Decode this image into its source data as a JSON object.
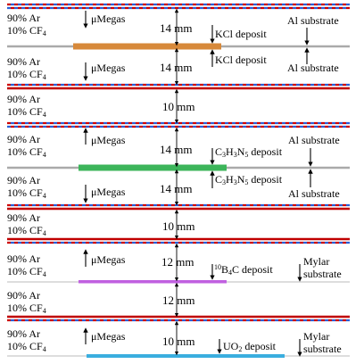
{
  "colors": {
    "mesh_red": "#cc0000",
    "mesh_blue": "#2a5fd6",
    "cathode_red": "#c00000",
    "substrate_gray": "#aaaaaa",
    "kcl": "#d7893a",
    "c3h3n5": "#3cb55a",
    "b4c": "#c060e0",
    "uo2": "#3aaedf"
  },
  "gaps": [
    {
      "gas_line1": "90% Ar",
      "gas_line2_prefix": "10% CF",
      "gas_line2_sub": "4",
      "megas_label": "μMegas",
      "megas_arrow": "down",
      "distance": "14 mm",
      "deposit_prefix": "KCl deposit",
      "deposit_arrow": "down",
      "substrate_label": "Al substrate",
      "substrate_arrow": "down"
    },
    {
      "gas_line1": "90% Ar",
      "gas_line2_prefix": "10% CF",
      "gas_line2_sub": "4",
      "megas_label": "μMegas",
      "megas_arrow": "down",
      "distance": "14 mm",
      "deposit_prefix": "KCl deposit",
      "deposit_arrow": "up",
      "substrate_label": "Al substrate",
      "substrate_arrow": "up"
    },
    {
      "gas_line1": "90% Ar",
      "gas_line2_prefix": "10% CF",
      "gas_line2_sub": "4",
      "distance": "10 mm"
    },
    {
      "gas_line1": "90% Ar",
      "gas_line2_prefix": "10% CF",
      "gas_line2_sub": "4",
      "megas_label": "μMegas",
      "megas_arrow": "up",
      "distance": "14 mm",
      "deposit_html_parts": [
        "C",
        "3",
        "H",
        "3",
        "N",
        "5",
        " deposit"
      ],
      "deposit_arrow": "down",
      "substrate_label": "Al substrate",
      "substrate_arrow": "down"
    },
    {
      "gas_line1": "90% Ar",
      "gas_line2_prefix": "10% CF",
      "gas_line2_sub": "4",
      "megas_label": "μMegas",
      "megas_arrow": "down",
      "distance": "14 mm",
      "deposit_html_parts": [
        "C",
        "3",
        "H",
        "3",
        "N",
        "5",
        " deposit"
      ],
      "deposit_arrow": "up",
      "substrate_label": "Al substrate",
      "substrate_arrow": "up"
    },
    {
      "gas_line1": "90% Ar",
      "gas_line2_prefix": "10% CF",
      "gas_line2_sub": "4",
      "distance": "10 mm"
    },
    {
      "gas_line1": "90% Ar",
      "gas_line2_prefix": "10% CF",
      "gas_line2_sub": "4",
      "megas_label": "μMegas",
      "megas_arrow": "up",
      "distance": "12 mm",
      "deposit_sup": "10",
      "deposit_b4c": [
        "B",
        "4",
        "C deposit"
      ],
      "deposit_arrow": "down",
      "substrate_label_1": "Mylar",
      "substrate_label_2": "substrate",
      "substrate_arrow": "down"
    },
    {
      "gas_line1": "90% Ar",
      "gas_line2_prefix": "10% CF",
      "gas_line2_sub": "4",
      "distance": "12 mm"
    },
    {
      "gas_line1": "90% Ar",
      "gas_line2_prefix": "10% CF",
      "gas_line2_sub": "4",
      "megas_label": "μMegas",
      "megas_arrow": "up",
      "distance": "10 mm",
      "deposit_uo2": [
        "UO",
        "2",
        " deposit"
      ],
      "deposit_arrow": "down",
      "substrate_label_1": "Mylar",
      "substrate_label_2": "substrate",
      "substrate_arrow": "down"
    }
  ]
}
